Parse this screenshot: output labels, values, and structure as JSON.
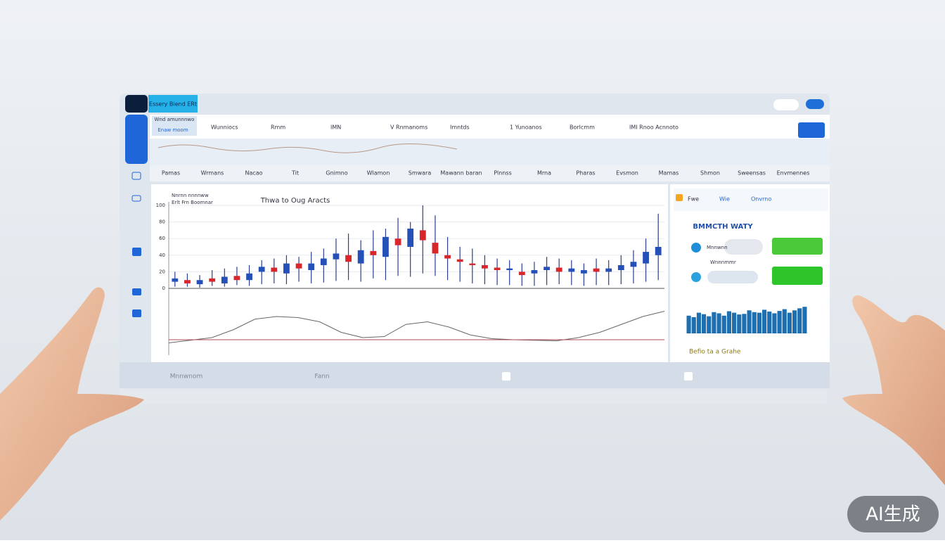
{
  "header": {
    "brand": "Essery Biend ERt",
    "account": "Wnd amunnnwo",
    "balance": "Enaw moom"
  },
  "tickers": [
    "Wunniocs",
    "Rmm",
    "IMN",
    "V Rnmanoms",
    "Imntds",
    "1 Yunoanos",
    "Borlcmm",
    "IMI Rnoo Acnnoto"
  ],
  "tabs": [
    "Pamas",
    "Wrmans",
    "Nacao",
    "Tit",
    "Gnimno",
    "Wlamon",
    "Smwara",
    "Mawann baran",
    "Plnnss",
    "Mrna",
    "Pharas",
    "Evsmon",
    "Mamas",
    "Shmon",
    "Sweensas",
    "Envmennes"
  ],
  "chart": {
    "type": "candlestick",
    "title": "Thwa to Oug Aracts",
    "legend": [
      "Nnrnn nnnnww",
      "Erlt Frn Boomnar"
    ],
    "ylim": [
      0,
      100
    ],
    "yticks": [
      0,
      20,
      40,
      60,
      80,
      100
    ],
    "colors": {
      "up": "#2450b8",
      "down": "#d8262a",
      "wick": "#2a3f8f"
    },
    "open": [
      8,
      10,
      5,
      12,
      6,
      15,
      10,
      20,
      25,
      18,
      30,
      22,
      28,
      35,
      40,
      30,
      45,
      38,
      60,
      50,
      70,
      55,
      40,
      35,
      30,
      28,
      25,
      22,
      20,
      18,
      22,
      25,
      20,
      18,
      24,
      20,
      22,
      26,
      30,
      40
    ],
    "close": [
      12,
      6,
      10,
      8,
      14,
      10,
      18,
      26,
      20,
      30,
      24,
      30,
      36,
      42,
      32,
      46,
      40,
      62,
      52,
      72,
      58,
      42,
      36,
      32,
      28,
      24,
      22,
      24,
      16,
      22,
      26,
      20,
      24,
      22,
      20,
      24,
      28,
      32,
      44,
      50
    ],
    "low": [
      2,
      2,
      1,
      3,
      2,
      4,
      3,
      5,
      6,
      5,
      8,
      6,
      7,
      9,
      10,
      8,
      12,
      10,
      15,
      14,
      18,
      15,
      10,
      8,
      6,
      5,
      4,
      4,
      3,
      3,
      4,
      5,
      4,
      3,
      4,
      4,
      5,
      6,
      8,
      10
    ],
    "high": [
      20,
      18,
      16,
      22,
      24,
      26,
      28,
      34,
      36,
      40,
      38,
      44,
      48,
      60,
      66,
      58,
      70,
      72,
      85,
      80,
      100,
      88,
      62,
      50,
      48,
      40,
      36,
      34,
      30,
      32,
      38,
      36,
      34,
      30,
      36,
      34,
      40,
      46,
      60,
      90
    ],
    "trend": {
      "ylim": [
        0,
        100
      ],
      "color": "#666",
      "values": [
        10,
        15,
        20,
        35,
        55,
        60,
        58,
        50,
        30,
        20,
        22,
        45,
        50,
        40,
        25,
        18,
        16,
        15,
        14,
        20,
        30,
        45,
        60,
        70
      ]
    }
  },
  "side": {
    "tabs": [
      "Fwe",
      "Wie",
      "Onvrno"
    ],
    "heading": "BMMCTH WATY",
    "rows": [
      "Mnnwnn",
      "Wnnnmmr"
    ],
    "bars": {
      "ylim": [
        0,
        100
      ],
      "color": "#1e6fb0",
      "values": [
        60,
        55,
        70,
        65,
        58,
        72,
        68,
        60,
        75,
        70,
        64,
        66,
        78,
        72,
        70,
        80,
        74,
        68,
        76,
        82,
        70,
        78,
        85,
        90
      ]
    },
    "footer": "Befio ta a Grahe"
  },
  "footer": {
    "left": "Mnnwnom",
    "mid": "Fann"
  },
  "watermark": "AI生成"
}
